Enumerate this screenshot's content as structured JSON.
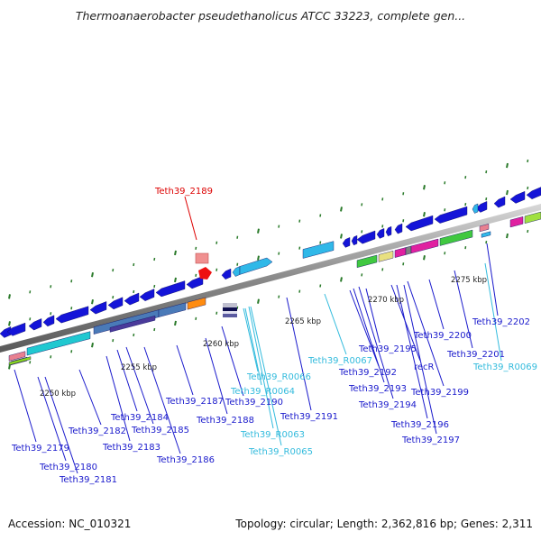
{
  "title": "Thermoanaerobacter pseudethanolicus ATCC 33223, complete gen...",
  "footer": {
    "accession": "Accession: NC_010321",
    "topology": "Topology: circular; Length: 2,362,816 bp; Genes: 2,311"
  },
  "colors": {
    "gene_label": "#1a1acc",
    "rna_label": "#33bbdd",
    "highlight_label": "#dd0000",
    "backbone": "#9a9a9a",
    "tick": "#2a7a2a"
  },
  "kbp_ticks": [
    "2250 kbp",
    "2255 kbp",
    "2260 kbp",
    "2265 kbp",
    "2270 kbp",
    "2275 kbp"
  ],
  "gene_labels": [
    {
      "text": "Teth39_2189",
      "kind": "highlight"
    },
    {
      "text": "Teth39_2179",
      "kind": "gene"
    },
    {
      "text": "Teth39_2180",
      "kind": "gene"
    },
    {
      "text": "Teth39_2181",
      "kind": "gene"
    },
    {
      "text": "Teth39_2182",
      "kind": "gene"
    },
    {
      "text": "Teth39_2183",
      "kind": "gene"
    },
    {
      "text": "Teth39_2184",
      "kind": "gene"
    },
    {
      "text": "Teth39_2185",
      "kind": "gene"
    },
    {
      "text": "Teth39_2186",
      "kind": "gene"
    },
    {
      "text": "Teth39_2187",
      "kind": "gene"
    },
    {
      "text": "Teth39_2188",
      "kind": "gene"
    },
    {
      "text": "Teth39_2190",
      "kind": "gene"
    },
    {
      "text": "Teth39_R0066",
      "kind": "rna"
    },
    {
      "text": "Teth39_R0064",
      "kind": "rna"
    },
    {
      "text": "Teth39_R0063",
      "kind": "rna"
    },
    {
      "text": "Teth39_R0065",
      "kind": "rna"
    },
    {
      "text": "Teth39_2191",
      "kind": "gene"
    },
    {
      "text": "Teth39_R0067",
      "kind": "rna"
    },
    {
      "text": "Teth39_2192",
      "kind": "gene"
    },
    {
      "text": "Teth39_2193",
      "kind": "gene"
    },
    {
      "text": "Teth39_2194",
      "kind": "gene"
    },
    {
      "text": "Teth39_2195",
      "kind": "gene"
    },
    {
      "text": "recR",
      "kind": "gene"
    },
    {
      "text": "Teth39_2196",
      "kind": "gene"
    },
    {
      "text": "Teth39_2197",
      "kind": "gene"
    },
    {
      "text": "Teth39_2199",
      "kind": "gene"
    },
    {
      "text": "Teth39_2200",
      "kind": "gene"
    },
    {
      "text": "Teth39_2201",
      "kind": "gene"
    },
    {
      "text": "Teth39_R0069",
      "kind": "rna"
    },
    {
      "text": "Teth39_2202",
      "kind": "gene"
    }
  ]
}
